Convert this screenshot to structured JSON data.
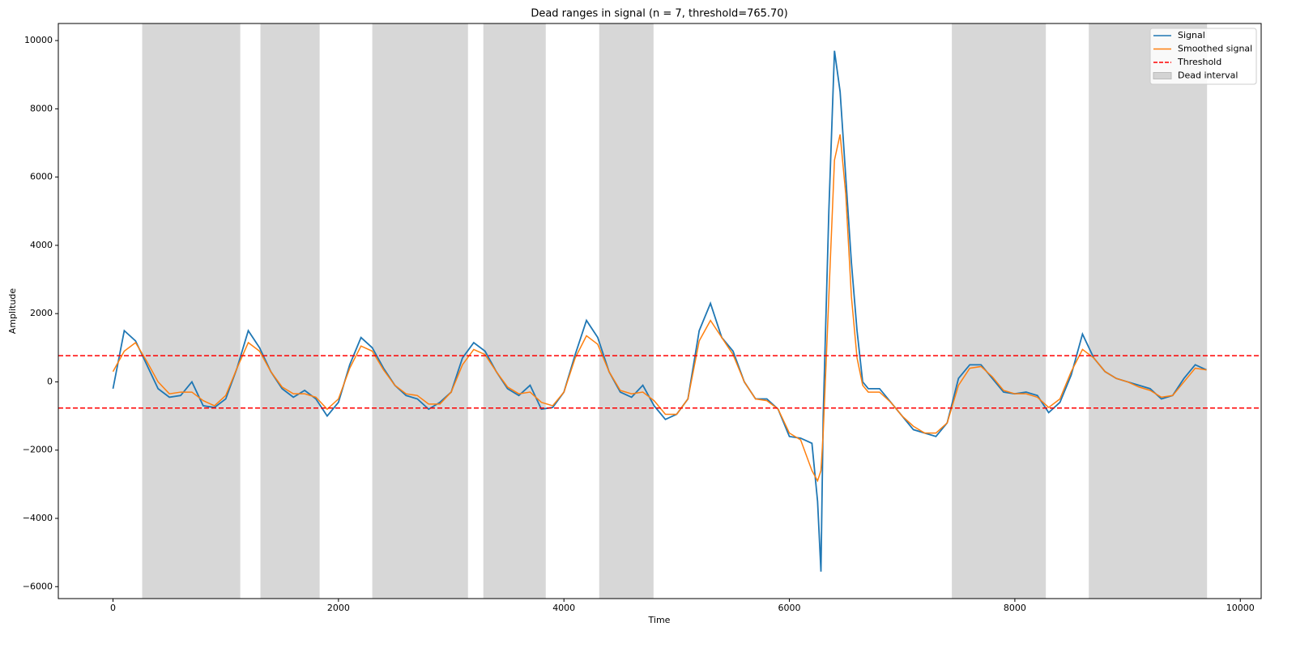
{
  "chart_data": {
    "type": "line",
    "title": "Dead ranges in signal (n = 7, threshold=765.70)",
    "xlabel": "Time",
    "ylabel": "Amplitude",
    "x": [
      0,
      100,
      200,
      300,
      400,
      500,
      600,
      700,
      800,
      900,
      1000,
      1100,
      1200,
      1300,
      1400,
      1500,
      1600,
      1700,
      1800,
      1900,
      2000,
      2100,
      2200,
      2300,
      2400,
      2500,
      2600,
      2700,
      2800,
      2900,
      3000,
      3100,
      3200,
      3300,
      3400,
      3500,
      3600,
      3700,
      3800,
      3900,
      4000,
      4100,
      4200,
      4300,
      4400,
      4500,
      4600,
      4700,
      4800,
      4900,
      5000,
      5100,
      5200,
      5300,
      5400,
      5500,
      5600,
      5700,
      5800,
      5900,
      6000,
      6100,
      6200,
      6250,
      6280,
      6300,
      6350,
      6400,
      6450,
      6500,
      6550,
      6600,
      6650,
      6700,
      6800,
      6900,
      7000,
      7100,
      7200,
      7300,
      7400,
      7500,
      7600,
      7700,
      7800,
      7900,
      8000,
      8100,
      8200,
      8300,
      8400,
      8500,
      8600,
      8700,
      8800,
      8900,
      9000,
      9100,
      9200,
      9300,
      9400,
      9500,
      9600,
      9700
    ],
    "series": [
      {
        "name": "Signal",
        "color": "#1f77b4",
        "values": [
          -200,
          1500,
          1200,
          500,
          -200,
          -450,
          -400,
          0,
          -700,
          -750,
          -500,
          400,
          1500,
          1000,
          300,
          -200,
          -450,
          -250,
          -500,
          -1000,
          -600,
          500,
          1300,
          1000,
          400,
          -100,
          -400,
          -500,
          -800,
          -600,
          -300,
          700,
          1150,
          900,
          300,
          -200,
          -400,
          -100,
          -800,
          -750,
          -300,
          800,
          1800,
          1300,
          300,
          -300,
          -450,
          -100,
          -700,
          -1100,
          -950,
          -500,
          1500,
          2300,
          1300,
          900,
          0,
          -500,
          -500,
          -800,
          -1600,
          -1650,
          -1800,
          -3500,
          -5560,
          -1000,
          5000,
          9700,
          8500,
          6000,
          3500,
          1500,
          0,
          -200,
          -200,
          -600,
          -1000,
          -1400,
          -1500,
          -1600,
          -1200,
          100,
          500,
          500,
          100,
          -300,
          -350,
          -300,
          -400,
          -900,
          -600,
          200,
          1400,
          700,
          300,
          100,
          0,
          -100,
          -200,
          -500,
          -400,
          100,
          500,
          350
        ]
      },
      {
        "name": "Smoothed signal",
        "color": "#ff7f0e",
        "values": [
          300,
          900,
          1150,
          600,
          0,
          -350,
          -300,
          -300,
          -550,
          -700,
          -400,
          400,
          1150,
          900,
          300,
          -150,
          -350,
          -350,
          -450,
          -800,
          -500,
          400,
          1050,
          900,
          350,
          -100,
          -350,
          -400,
          -650,
          -650,
          -300,
          500,
          950,
          800,
          300,
          -150,
          -350,
          -300,
          -600,
          -700,
          -300,
          700,
          1350,
          1100,
          300,
          -250,
          -350,
          -300,
          -550,
          -950,
          -950,
          -500,
          1200,
          1800,
          1300,
          800,
          0,
          -500,
          -550,
          -800,
          -1500,
          -1700,
          -2600,
          -2900,
          -2600,
          -1500,
          2500,
          6500,
          7250,
          5500,
          2500,
          700,
          -100,
          -300,
          -300,
          -600,
          -1000,
          -1300,
          -1500,
          -1500,
          -1200,
          -100,
          400,
          450,
          150,
          -250,
          -350,
          -350,
          -450,
          -750,
          -500,
          300,
          950,
          700,
          300,
          100,
          0,
          -150,
          -250,
          -450,
          -400,
          0,
          400,
          350
        ]
      }
    ],
    "thresholds": {
      "name": "Threshold",
      "color": "#ff0000",
      "values": [
        765.7,
        -765.7
      ]
    },
    "dead_intervals": {
      "name": "Dead interval",
      "color": "#d3d3d3",
      "intervals": [
        [
          259,
          1129
        ],
        [
          1308,
          1833
        ],
        [
          2300,
          3149
        ],
        [
          3285,
          3839
        ],
        [
          4313,
          4795
        ],
        [
          7441,
          8275
        ],
        [
          8656,
          9705
        ]
      ]
    },
    "xlim": [
      -485,
      10185
    ],
    "ylim": [
      -6350,
      10500
    ],
    "xticks": [
      0,
      2000,
      4000,
      6000,
      8000,
      10000
    ],
    "yticks": [
      {
        "value": -6000,
        "label": "−6000"
      },
      {
        "value": -4000,
        "label": "−4000"
      },
      {
        "value": -2000,
        "label": "−2000"
      },
      0,
      2000,
      4000,
      6000,
      8000,
      10000
    ],
    "grid": false,
    "legend": "upper right"
  }
}
